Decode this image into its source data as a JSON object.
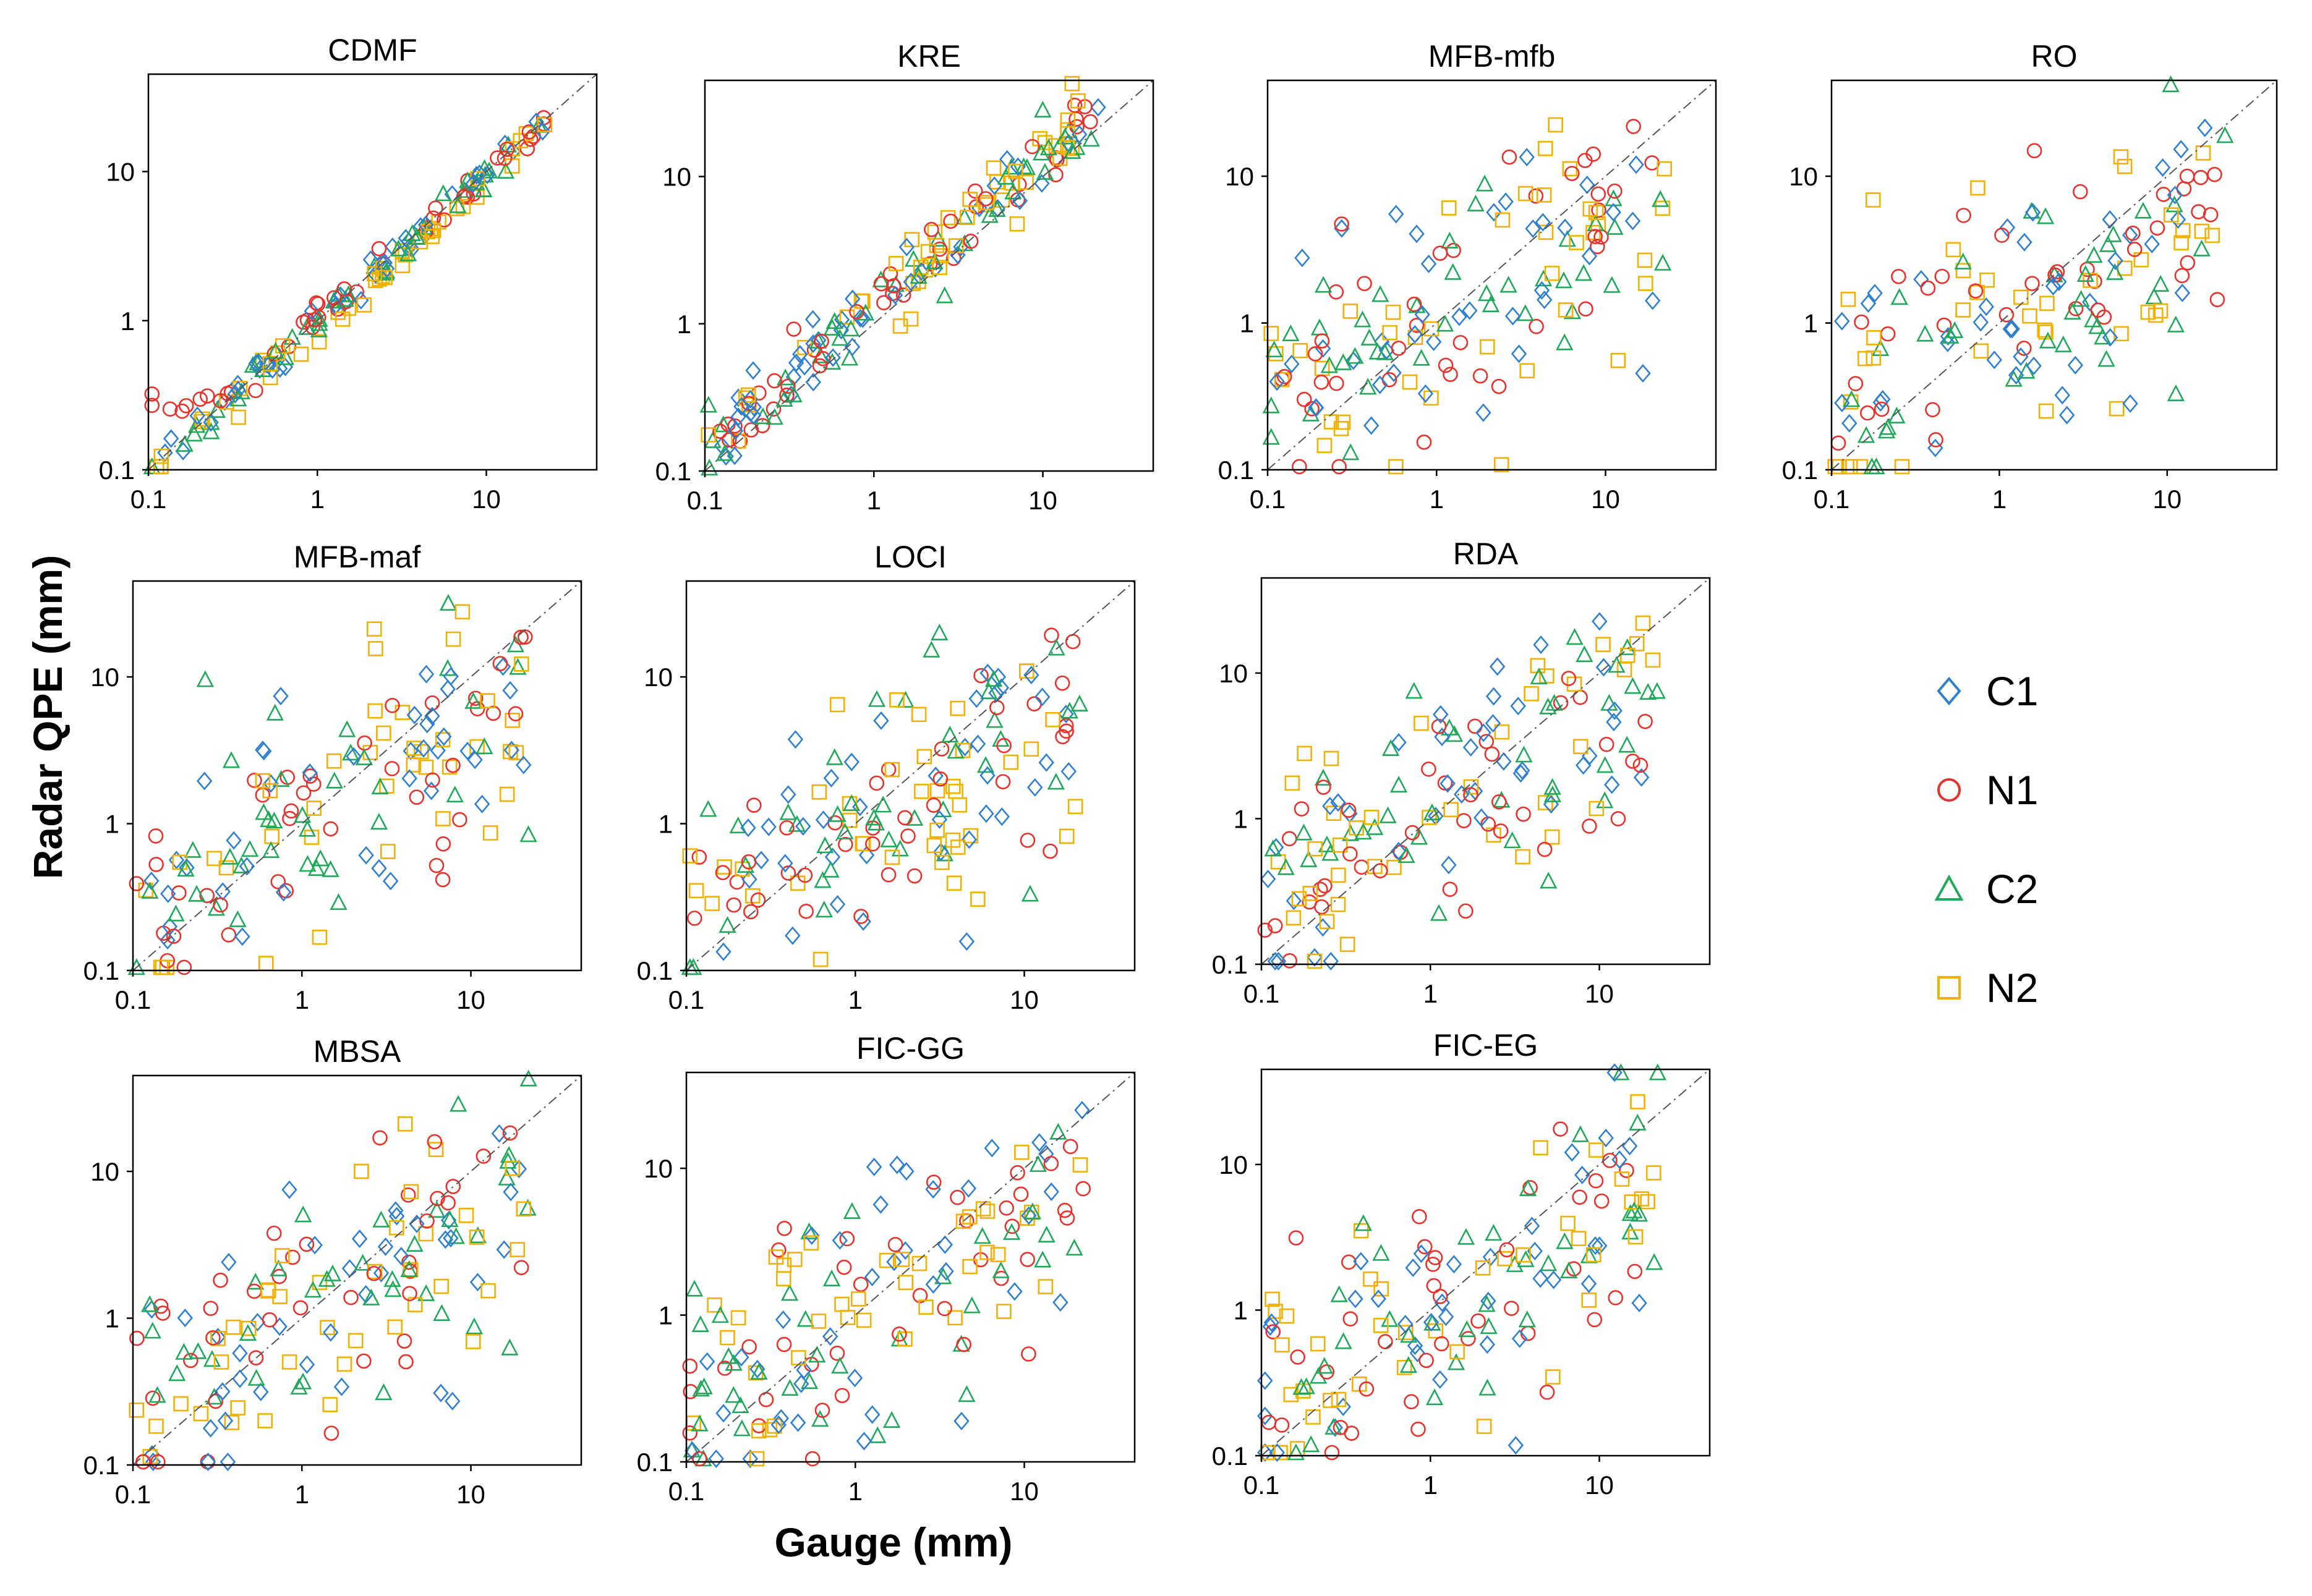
{
  "figure": {
    "xlabel": "Gauge (mm)",
    "ylabel": "Radar QPE (mm)"
  },
  "legend": [
    {
      "name": "C1",
      "marker": "diamond",
      "color": "#2F7FD1"
    },
    {
      "name": "N1",
      "marker": "circle",
      "color": "#E8312A"
    },
    {
      "name": "C2",
      "marker": "triangle",
      "color": "#21A95B"
    },
    {
      "name": "N2",
      "marker": "square",
      "color": "#F2B100"
    }
  ],
  "chart_data": [
    {
      "type": "scatter",
      "title": "CDMF",
      "xscale": "log",
      "yscale": "log",
      "xlim": [
        0.1,
        45
      ],
      "ylim": [
        0.1,
        45
      ],
      "xticks": [
        "0.1",
        "1",
        "10"
      ],
      "yticks": [
        "0.1",
        "1",
        "10"
      ],
      "diagonal": true,
      "pattern": "tight",
      "n_points": 180
    },
    {
      "type": "scatter",
      "title": "KRE",
      "xscale": "log",
      "yscale": "log",
      "xlim": [
        0.1,
        45
      ],
      "ylim": [
        0.1,
        45
      ],
      "xticks": [
        "0.1",
        "1",
        "10"
      ],
      "yticks": [
        "0.1",
        "1",
        "10"
      ],
      "diagonal": true,
      "pattern": "above",
      "n_points": 180
    },
    {
      "type": "scatter",
      "title": "MFB-mfb",
      "xscale": "log",
      "yscale": "log",
      "xlim": [
        0.1,
        45
      ],
      "ylim": [
        0.1,
        45
      ],
      "xticks": [
        "0.1",
        "1",
        "10"
      ],
      "yticks": [
        "0.1",
        "1",
        "10"
      ],
      "diagonal": true,
      "pattern": "wide",
      "n_points": 160
    },
    {
      "type": "scatter",
      "title": "RO",
      "xscale": "log",
      "yscale": "log",
      "xlim": [
        0.1,
        45
      ],
      "ylim": [
        0.1,
        45
      ],
      "xticks": [
        "0.1",
        "1",
        "10"
      ],
      "yticks": [
        "0.1",
        "1",
        "10"
      ],
      "diagonal": true,
      "pattern": "wide",
      "n_points": 160
    },
    {
      "type": "scatter",
      "title": "MFB-maf",
      "xscale": "log",
      "yscale": "log",
      "xlim": [
        0.1,
        45
      ],
      "ylim": [
        0.1,
        45
      ],
      "xticks": [
        "0.1",
        "1",
        "10"
      ],
      "yticks": [
        "0.1",
        "1",
        "10"
      ],
      "diagonal": true,
      "pattern": "wide",
      "n_points": 160
    },
    {
      "type": "scatter",
      "title": "LOCI",
      "xscale": "log",
      "yscale": "log",
      "xlim": [
        0.1,
        45
      ],
      "ylim": [
        0.1,
        45
      ],
      "xticks": [
        "0.1",
        "1",
        "10"
      ],
      "yticks": [
        "0.1",
        "1",
        "10"
      ],
      "diagonal": true,
      "pattern": "wide",
      "n_points": 160
    },
    {
      "type": "scatter",
      "title": "RDA",
      "xscale": "log",
      "yscale": "log",
      "xlim": [
        0.1,
        45
      ],
      "ylim": [
        0.1,
        45
      ],
      "xticks": [
        "0.1",
        "1",
        "10"
      ],
      "yticks": [
        "0.1",
        "1",
        "10"
      ],
      "diagonal": true,
      "pattern": "wide",
      "n_points": 160
    },
    {
      "type": "scatter",
      "title": "MBSA",
      "xscale": "log",
      "yscale": "log",
      "xlim": [
        0.1,
        45
      ],
      "ylim": [
        0.1,
        45
      ],
      "xticks": [
        "0.1",
        "1",
        "10"
      ],
      "yticks": [
        "0.1",
        "1",
        "10"
      ],
      "diagonal": true,
      "pattern": "wide",
      "n_points": 160
    },
    {
      "type": "scatter",
      "title": "FIC-GG",
      "xscale": "log",
      "yscale": "log",
      "xlim": [
        0.1,
        45
      ],
      "ylim": [
        0.1,
        45
      ],
      "xticks": [
        "0.1",
        "1",
        "10"
      ],
      "yticks": [
        "0.1",
        "1",
        "10"
      ],
      "diagonal": true,
      "pattern": "wide",
      "n_points": 160
    },
    {
      "type": "scatter",
      "title": "FIC-EG",
      "xscale": "log",
      "yscale": "log",
      "xlim": [
        0.1,
        45
      ],
      "ylim": [
        0.1,
        45
      ],
      "xticks": [
        "0.1",
        "1",
        "10"
      ],
      "yticks": [
        "0.1",
        "1",
        "10"
      ],
      "diagonal": true,
      "pattern": "wide",
      "n_points": 160
    }
  ]
}
